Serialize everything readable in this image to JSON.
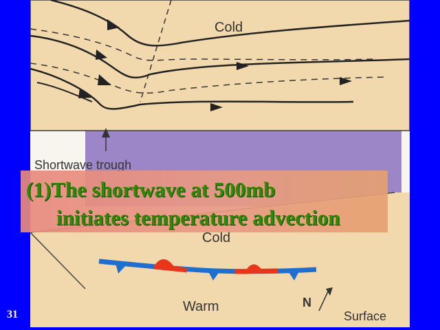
{
  "slide_number": "31",
  "upper_panel": {
    "cold_label": "Cold"
  },
  "trough_label": "Shortwave trough",
  "lower_panel": {
    "cold_label": "Cold",
    "warm_label": "Warm",
    "north_label": "N",
    "surface_label": "Surface"
  },
  "caption": {
    "line1": "(1)The shortwave at 500mb",
    "line2": "initiates temperature advection"
  },
  "colors": {
    "background": "#0000ff",
    "panel_fill": "#f2d9ad",
    "purple_band": "#9c86c7",
    "caption_text": "#2f8a00",
    "front_cold": "#1f6fd0",
    "front_warm": "#e8361a"
  }
}
